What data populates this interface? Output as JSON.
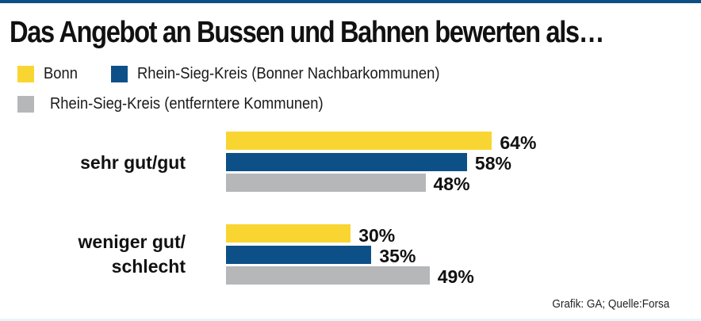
{
  "chart_data": {
    "type": "bar",
    "orientation": "horizontal",
    "title": "Das Angebot an Bussen und Bahnen bewerten als…",
    "categories": [
      "sehr gut/gut",
      "weniger gut/ schlecht"
    ],
    "category_lines": [
      [
        "sehr gut/gut"
      ],
      [
        "weniger gut/",
        "schlecht"
      ]
    ],
    "series": [
      {
        "name": "Bonn",
        "color": "#f9d531",
        "values": [
          64,
          30
        ]
      },
      {
        "name": "Rhein-Sieg-Kreis (Bonner Nachbarkommunen)",
        "color": "#0d5088",
        "values": [
          58,
          35
        ]
      },
      {
        "name": "Rhein-Sieg-Kreis (entferntere Kommunen)",
        "color": "#b6b7b9",
        "values": [
          48,
          49
        ]
      }
    ],
    "value_suffix": "%",
    "xlim": [
      0,
      100
    ],
    "grid": false,
    "legend": "top-left",
    "xlabel": "",
    "ylabel": "",
    "source": "Grafik: GA; Quelle:Forsa"
  }
}
